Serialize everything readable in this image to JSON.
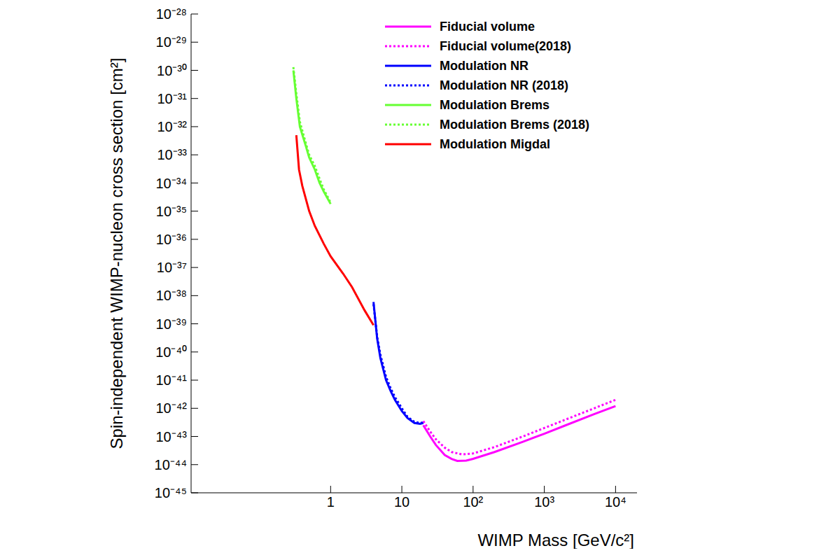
{
  "chart_data": {
    "type": "line",
    "x_label": "WIMP Mass [GeV/c²]",
    "y_label": "Spin-independent WIMP-nucleon cross section [cm²]",
    "log": true,
    "grid": false,
    "legend": "upper right",
    "xlim": [
      0.011,
      20000
    ],
    "xticks": [
      1,
      10,
      {
        "value": 100,
        "label": "10²"
      },
      {
        "value": 1000,
        "label": "10³"
      },
      {
        "value": 10000,
        "label": "10⁴"
      }
    ],
    "ylim": [
      1e-45,
      1e-28
    ],
    "yticks": [
      {
        "value": 1e-45,
        "label": "10⁻⁴⁵"
      },
      {
        "value": 1e-44,
        "label": "10⁻⁴⁴"
      },
      {
        "value": 1e-43,
        "label": "10⁻⁴³"
      },
      {
        "value": 1e-42,
        "label": "10⁻⁴²"
      },
      {
        "value": 1e-41,
        "label": "10⁻⁴¹"
      },
      {
        "value": 1e-40,
        "label": "10⁻⁴⁰"
      },
      {
        "value": 1e-39,
        "label": "10⁻³⁹"
      },
      {
        "value": 1e-38,
        "label": "10⁻³⁸"
      },
      {
        "value": 1e-37,
        "label": "10⁻³⁷"
      },
      {
        "value": 1e-36,
        "label": "10⁻³⁶"
      },
      {
        "value": 1e-35,
        "label": "10⁻³⁵"
      },
      {
        "value": 1e-34,
        "label": "10⁻³⁴"
      },
      {
        "value": 1e-33,
        "label": "10⁻³³"
      },
      {
        "value": 1e-32,
        "label": "10⁻³²"
      },
      {
        "value": 1e-31,
        "label": "10⁻³¹"
      },
      {
        "value": 1e-30,
        "label": "10⁻³⁰"
      },
      {
        "value": 1e-29,
        "label": "10⁻²⁹"
      },
      {
        "value": 1e-28,
        "label": "10⁻²⁸"
      }
    ],
    "series": [
      {
        "name": "Fiducial volume",
        "color": "#ff00ff",
        "line_style": "solid",
        "x": [
          20,
          25,
          30,
          40,
          50,
          60,
          80,
          100,
          200,
          500,
          1000,
          2000,
          5000,
          10000
        ],
        "values": [
          2.5e-43,
          1e-43,
          5e-44,
          2.2e-44,
          1.6e-44,
          1.35e-44,
          1.4e-44,
          1.6e-44,
          2.8e-44,
          6.5e-44,
          1.25e-43,
          2.5e-43,
          6.2e-43,
          1.2e-42
        ]
      },
      {
        "name": "Fiducial volume(2018)",
        "color": "#ff00ff",
        "line_style": "dotted",
        "x": [
          20,
          25,
          30,
          40,
          50,
          70,
          100,
          200,
          500,
          1000,
          2000,
          5000,
          10000
        ],
        "values": [
          3.5e-43,
          1.5e-43,
          8e-44,
          4e-44,
          2.8e-44,
          2.3e-44,
          2.5e-44,
          4.2e-44,
          1e-43,
          2e-43,
          4e-43,
          1e-42,
          2e-42
        ]
      },
      {
        "name": "Modulation NR",
        "color": "#0000ff",
        "line_style": "solid",
        "x": [
          4,
          4.5,
          5,
          6,
          7,
          8,
          10,
          12,
          15,
          18,
          20
        ],
        "values": [
          6e-39,
          3e-40,
          6e-41,
          1e-41,
          4e-42,
          2e-42,
          8e-43,
          4.5e-43,
          3e-43,
          2.8e-43,
          3e-43
        ]
      },
      {
        "name": "Modulation NR (2018)",
        "color": "#0000ff",
        "line_style": "dotted",
        "x": [
          4,
          4.5,
          5,
          6,
          7,
          8,
          10,
          12,
          15,
          18,
          20
        ],
        "values": [
          5e-39,
          3.5e-40,
          8e-41,
          1.3e-41,
          5e-42,
          2.5e-42,
          1e-42,
          5e-43,
          3.3e-43,
          3e-43,
          3.2e-43
        ]
      },
      {
        "name": "Modulation Brems",
        "color": "#66ff33",
        "line_style": "solid",
        "x": [
          0.3,
          0.33,
          0.37,
          0.45,
          0.5,
          0.6,
          0.7,
          0.8,
          1
        ],
        "values": [
          1e-30,
          1e-31,
          1e-32,
          2e-33,
          8e-34,
          3e-34,
          1e-34,
          5e-35,
          1.8e-35
        ]
      },
      {
        "name": "Modulation Brems (2018)",
        "color": "#66ff33",
        "line_style": "dotted",
        "x": [
          0.3,
          0.33,
          0.37,
          0.45,
          0.5,
          0.6,
          0.7,
          0.8,
          1
        ],
        "values": [
          1.3e-30,
          1.5e-31,
          1.5e-32,
          2.5e-33,
          1e-33,
          4e-34,
          1.4e-34,
          6e-35,
          2e-35
        ]
      },
      {
        "name": "Modulation Migdal",
        "color": "#ff0000",
        "line_style": "solid",
        "x": [
          0.33,
          0.36,
          0.4,
          0.5,
          0.6,
          0.8,
          1,
          1.5,
          2,
          3,
          4
        ],
        "values": [
          5e-33,
          3e-34,
          8e-35,
          1e-35,
          3e-36,
          7e-37,
          2.5e-37,
          6e-38,
          2e-38,
          3e-39,
          9e-40
        ]
      }
    ]
  }
}
